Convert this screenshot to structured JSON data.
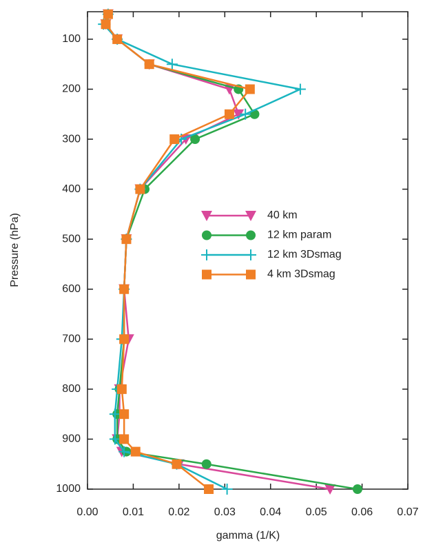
{
  "chart_data": {
    "type": "line",
    "x_label": "gamma (1/K)",
    "y_label": "Pressure (hPa)",
    "y": [
      50,
      70,
      100,
      150,
      200,
      250,
      300,
      400,
      500,
      600,
      700,
      800,
      850,
      900,
      925,
      950,
      1000
    ],
    "series": [
      {
        "name": "40 km",
        "color": "#d9489a",
        "marker": "triangle-down",
        "values": [
          0.0045,
          0.004,
          0.0065,
          0.0135,
          0.031,
          0.033,
          0.0215,
          0.0115,
          0.0085,
          0.008,
          0.009,
          0.007,
          0.007,
          0.0065,
          0.0075,
          0.02,
          0.053
        ]
      },
      {
        "name": "12 km param",
        "color": "#2ca84a",
        "marker": "circle",
        "values": [
          0.0045,
          0.004,
          0.0065,
          0.0135,
          0.033,
          0.0365,
          0.0235,
          0.0125,
          0.0085,
          0.008,
          0.008,
          0.007,
          0.0065,
          0.0065,
          0.0085,
          0.026,
          0.059
        ]
      },
      {
        "name": "12 km 3Dsmag",
        "color": "#1ab5c0",
        "marker": "plus",
        "values": [
          0.0045,
          0.0035,
          0.0065,
          0.0185,
          0.0465,
          0.0345,
          0.0205,
          0.0115,
          0.0085,
          0.008,
          0.0075,
          0.0065,
          0.006,
          0.006,
          0.008,
          0.0195,
          0.0305
        ]
      },
      {
        "name": "4 km 3Dsmag",
        "color": "#f07f26",
        "marker": "square",
        "values": [
          0.0045,
          0.004,
          0.0065,
          0.0135,
          0.0355,
          0.031,
          0.019,
          0.0115,
          0.0085,
          0.008,
          0.008,
          0.0075,
          0.008,
          0.008,
          0.0105,
          0.0195,
          0.0265
        ]
      }
    ],
    "xlim": [
      0,
      0.07
    ],
    "xticks": [
      {
        "value": 0,
        "label": "0.00"
      },
      0.01,
      0.02,
      0.03,
      0.04,
      0.05,
      0.06,
      0.07
    ],
    "ylim": [
      45,
      1000
    ],
    "y_inverted": true,
    "yticks": [
      100,
      200,
      300,
      400,
      500,
      600,
      700,
      800,
      900,
      1000
    ],
    "grid": false,
    "legend_loc": "right"
  }
}
